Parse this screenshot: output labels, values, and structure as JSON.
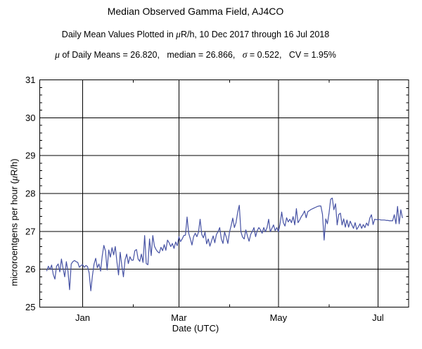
{
  "page": {
    "background": "#ffffff"
  },
  "chart_data": {
    "type": "line",
    "title": "Median Observed Gamma Field, AJ4CO",
    "subtitle_parts": [
      [
        "Daily Mean Values Plotted in ",
        false
      ],
      [
        "μ",
        true
      ],
      [
        "R/h, 10 Dec 2017 through 16 Jul 2018",
        false
      ]
    ],
    "stats_parts": [
      [
        "μ",
        true
      ],
      [
        " of Daily Means = 26.820,   median = 26.866,   ",
        false
      ],
      [
        "σ",
        true
      ],
      [
        " = 0.522,   CV = 1.95%",
        false
      ]
    ],
    "stats": {
      "mu_of_daily_means": "26.820",
      "median": "26.866",
      "sigma": "0.522",
      "cv": "1.95%"
    },
    "xlabel": "Date (UTC)",
    "ylabel_parts": [
      [
        "microroentgens per hour (",
        false
      ],
      [
        "μ",
        true
      ],
      [
        "R/h)",
        false
      ]
    ],
    "ylim": [
      25,
      31
    ],
    "y_major_ticks": [
      25,
      26,
      27,
      28,
      29,
      30,
      31
    ],
    "y_minor_step": 0.2,
    "x_domain_days": [
      -4.3,
      221.8
    ],
    "x_major_ticks": [
      {
        "label": "Jan",
        "day": 22
      },
      {
        "label": "Mar",
        "day": 81
      },
      {
        "label": "May",
        "day": 142
      },
      {
        "label": "Jul",
        "day": 203
      }
    ],
    "x_minor_tick_days": [
      53,
      112,
      173
    ],
    "start_date": "10 Dec 2017",
    "end_date": "16 Jul 2018",
    "grid": true,
    "legend": "none",
    "line_color": "#4652a4",
    "frame_color": "#000000",
    "values": [
      25.96,
      26.08,
      25.99,
      26.11,
      25.86,
      25.74,
      26.08,
      26.14,
      25.93,
      26.27,
      26.02,
      25.8,
      26.2,
      25.95,
      25.46,
      26.14,
      26.2,
      26.23,
      26.2,
      26.18,
      26.05,
      26.1,
      26.12,
      26.05,
      26.1,
      26.07,
      25.9,
      25.43,
      25.83,
      26.14,
      26.29,
      26.04,
      26.14,
      25.95,
      26.35,
      26.63,
      26.48,
      25.98,
      26.51,
      26.32,
      26.57,
      26.38,
      26.6,
      26.2,
      25.85,
      26.45,
      26.1,
      25.8,
      26.25,
      26.4,
      26.15,
      26.33,
      26.24,
      26.24,
      26.49,
      26.52,
      26.27,
      26.21,
      26.4,
      26.18,
      26.89,
      26.15,
      26.12,
      26.8,
      26.36,
      26.89,
      26.61,
      26.52,
      26.46,
      26.43,
      26.58,
      26.49,
      26.65,
      26.5,
      26.77,
      26.7,
      26.6,
      26.68,
      26.55,
      26.72,
      26.62,
      26.86,
      26.73,
      26.8,
      26.89,
      26.9,
      27.38,
      26.95,
      26.8,
      26.64,
      26.86,
      26.95,
      26.86,
      26.98,
      27.32,
      26.92,
      26.83,
      26.98,
      26.67,
      26.8,
      26.61,
      26.75,
      26.88,
      26.7,
      26.92,
      26.99,
      27.1,
      26.8,
      26.68,
      26.98,
      26.85,
      26.68,
      26.98,
      27.15,
      27.35,
      27.1,
      27.23,
      27.5,
      27.69,
      26.99,
      26.85,
      26.8,
      27.04,
      26.88,
      26.74,
      26.92,
      27.0,
      27.1,
      26.86,
      27.02,
      27.1,
      27.04,
      26.95,
      27.1,
      26.99,
      27.1,
      27.32,
      26.99,
      27.08,
      27.17,
      27.02,
      27.1,
      26.99,
      27.2,
      27.51,
      27.23,
      27.14,
      27.36,
      27.25,
      27.32,
      27.23,
      27.39,
      27.17,
      27.6,
      27.23,
      27.3,
      27.39,
      27.45,
      27.54,
      27.36,
      27.52,
      27.55,
      27.58,
      27.6,
      27.62,
      27.64,
      27.66,
      27.67,
      27.67,
      27.45,
      26.77,
      27.33,
      27.2,
      27.48,
      27.85,
      27.88,
      27.57,
      27.73,
      27.17,
      27.45,
      27.48,
      27.17,
      27.33,
      27.11,
      27.3,
      27.11,
      27.27,
      27.17,
      27.08,
      27.23,
      27.05,
      27.12,
      27.2,
      27.08,
      27.18,
      27.1,
      27.22,
      27.15,
      27.35,
      27.44,
      27.18,
      27.32,
      27.31,
      27.31,
      27.31,
      27.3,
      27.3,
      27.3,
      27.29,
      27.29,
      27.28,
      27.28,
      27.28,
      27.44,
      27.2,
      27.66,
      27.2,
      27.57,
      27.36
    ]
  }
}
